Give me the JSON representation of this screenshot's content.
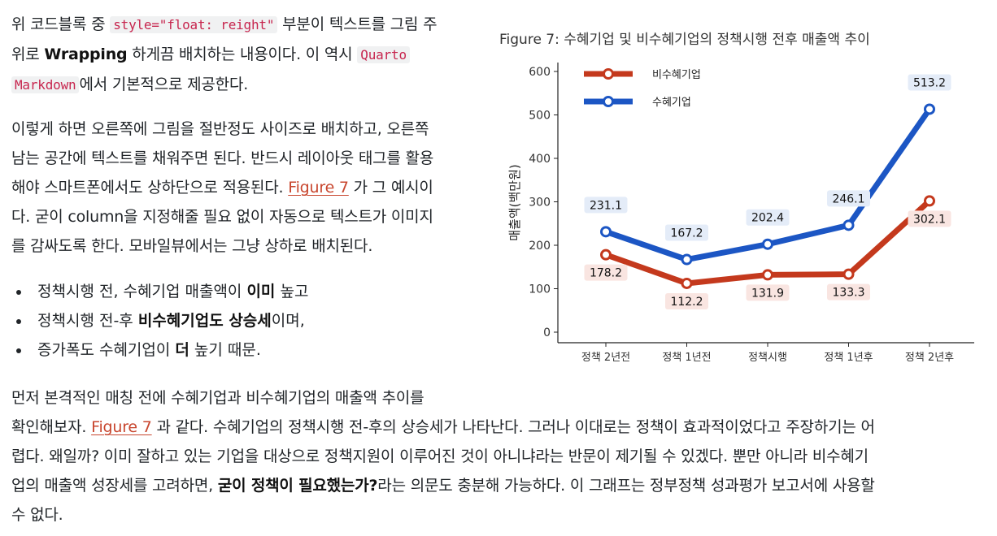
{
  "para1": {
    "t1": "위 코드블록 중 ",
    "code1": "style=\"float: reight\"",
    "t2": " 부분이 텍스트를 그림 주",
    "t3": "위로 ",
    "bold1": "Wrapping",
    "t4": " 하게끔 배치하는 내용이다. 이 역시 ",
    "code2a": "Quarto",
    "code2b": "Markdown",
    "t5": "에서 기본적으로 제공한다."
  },
  "para2": {
    "l1": "이렇게 하면 오른쪽에 그림을 절반정도 사이즈로 배치하고, 오른쪽",
    "l2": "남는 공간에 텍스트를 채워주면 된다. 반드시 레이아웃 태그를 활용",
    "l3a": "해야 스마트폰에서도 상하단으로 적용된다. ",
    "link": "Figure 7",
    "l3b": " 가 그 예시이",
    "l4": "다. 굳이 column을 지정해줄 필요 없이 자동으로 텍스트가 이미지",
    "l5": "를 감싸도록 한다. 모바일뷰에서는 그냥 상하로 배치된다."
  },
  "bullets": [
    {
      "pre": "정책시행 전, 수혜기업 매출액이 ",
      "bold": "이미",
      "post": " 높고"
    },
    {
      "pre": "정책시행 전-후 ",
      "bold": "비수혜기업도 상승세",
      "post": "이며,"
    },
    {
      "pre": "증가폭도 수혜기업이 ",
      "bold": "더",
      "post": " 높기 때문."
    }
  ],
  "para3": {
    "l1": "먼저 본격적인 매칭 전에 수혜기업과 비수혜기업의 매출액 추이를",
    "l2a": "확인해보자. ",
    "link": "Figure 7",
    "l2b": " 과 같다. 수혜기업의 정책시행 전-후의 상승세가 나타난다. 그러나 이대로는 정책이 효과적이었다고 주장하기는 어",
    "l3": "렵다. 왜일까? 이미 잘하고 있는 기업을 대상으로 정책지원이 이루어진 것이 아니냐라는 반문이 제기될 수 있겠다. 뿐만 아니라 비수혜기",
    "l4a": "업의 매출액 성장세를 고려하면, ",
    "bold": "굳이 정책이 필요했는가?",
    "l4b": "라는 의문도 충분해 가능하다. 이 그래프는 정부정책 성과평가 보고서에 사용할",
    "l5": "수 없다."
  },
  "figure": {
    "caption": "Figure 7: 수혜기업 및 비수혜기업의 정책시행 전후 매출액 추이"
  },
  "chart_data": {
    "type": "line",
    "categories": [
      "정책 2년전",
      "정책 1년전",
      "정책시행",
      "정책 1년후",
      "정책 2년후"
    ],
    "series": [
      {
        "name": "비수혜기업",
        "values": [
          178.2,
          112.2,
          131.9,
          133.3,
          302.1
        ],
        "color": "#c4391d",
        "label_bg": "#f9e5e1"
      },
      {
        "name": "수혜기업",
        "values": [
          231.1,
          167.2,
          202.4,
          246.1,
          513.2
        ],
        "color": "#1c56c4",
        "label_bg": "#e4ecf8"
      }
    ],
    "xlabel": "",
    "ylabel": "매출액(백만원)",
    "ylim": [
      0,
      600
    ],
    "yticks": [
      0,
      100,
      200,
      300,
      400,
      500,
      600
    ],
    "grid": false,
    "legend_position": "top-left"
  }
}
